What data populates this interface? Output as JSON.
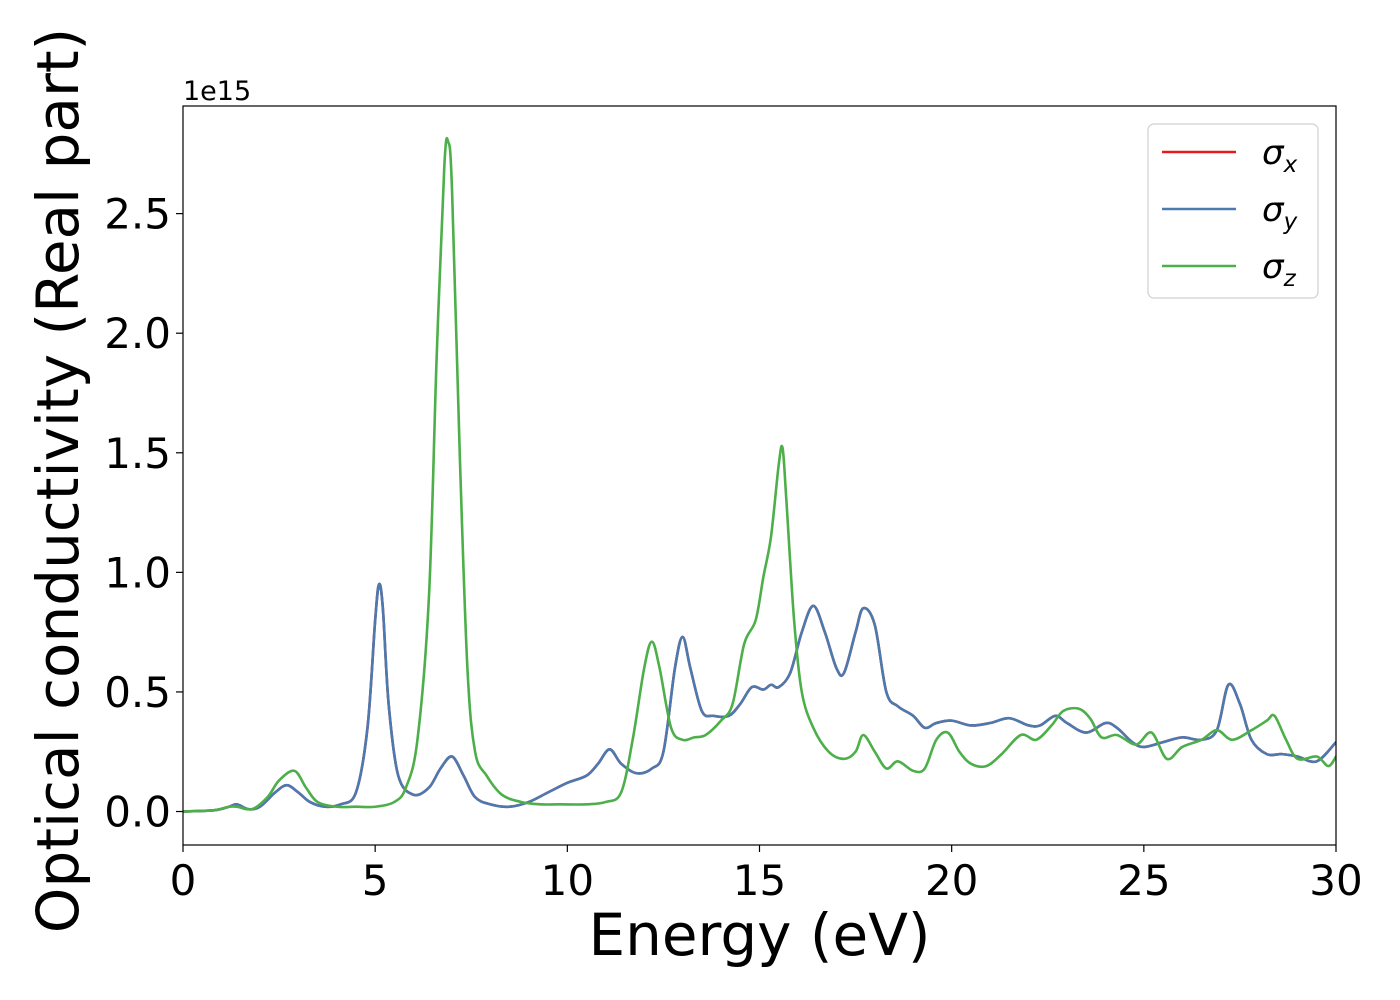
{
  "chart_data": {
    "type": "line",
    "xlabel": "Energy (eV)",
    "ylabel": "Optical conductivity (Real part)",
    "offset_text": "1e15",
    "xlim": [
      0,
      30
    ],
    "ylim": [
      -0.14,
      2.95
    ],
    "y_scale_multiplier": 1000000000000000.0,
    "x_ticks": [
      0,
      5,
      10,
      15,
      20,
      25,
      30
    ],
    "x_tick_labels": [
      "0",
      "5",
      "10",
      "15",
      "20",
      "25",
      "30"
    ],
    "y_ticks": [
      0.0,
      0.5,
      1.0,
      1.5,
      2.0,
      2.5
    ],
    "y_tick_labels": [
      "0.0",
      "0.5",
      "1.0",
      "1.5",
      "2.0",
      "2.5"
    ],
    "grid": false,
    "legend_position": "top-right",
    "series": [
      {
        "name": "σx",
        "symbol": "σ",
        "subscript": "x",
        "color": "#e41a1c",
        "x": [
          0,
          0.8,
          1.2,
          1.4,
          1.7,
          2.0,
          2.4,
          2.7,
          3.0,
          3.3,
          3.7,
          4.1,
          4.5,
          4.8,
          5.0,
          5.1,
          5.2,
          5.35,
          5.6,
          6.0,
          6.4,
          6.7,
          7.0,
          7.3,
          7.6,
          8.0,
          8.5,
          9.0,
          9.5,
          10.0,
          10.5,
          10.8,
          11.1,
          11.4,
          11.8,
          12.2,
          12.5,
          12.8,
          13.0,
          13.2,
          13.5,
          13.8,
          14.2,
          14.5,
          14.8,
          15.1,
          15.3,
          15.5,
          15.8,
          16.1,
          16.4,
          16.7,
          17.0,
          17.2,
          17.5,
          17.7,
          18.0,
          18.3,
          18.6,
          19.0,
          19.3,
          19.6,
          20.0,
          20.5,
          21.0,
          21.5,
          22.0,
          22.3,
          22.7,
          23.0,
          23.5,
          24.0,
          24.3,
          24.7,
          25.0,
          25.5,
          26.0,
          26.5,
          26.9,
          27.2,
          27.5,
          27.8,
          28.2,
          28.6,
          29.0,
          29.5,
          30.0
        ],
        "y": [
          0.0,
          0.005,
          0.02,
          0.03,
          0.01,
          0.02,
          0.08,
          0.11,
          0.08,
          0.04,
          0.02,
          0.03,
          0.08,
          0.35,
          0.8,
          0.95,
          0.85,
          0.45,
          0.15,
          0.07,
          0.1,
          0.18,
          0.23,
          0.15,
          0.06,
          0.03,
          0.02,
          0.04,
          0.08,
          0.12,
          0.15,
          0.2,
          0.26,
          0.2,
          0.16,
          0.18,
          0.25,
          0.6,
          0.73,
          0.6,
          0.42,
          0.4,
          0.4,
          0.45,
          0.52,
          0.51,
          0.53,
          0.52,
          0.58,
          0.75,
          0.86,
          0.75,
          0.6,
          0.58,
          0.75,
          0.85,
          0.78,
          0.5,
          0.44,
          0.4,
          0.35,
          0.37,
          0.38,
          0.36,
          0.37,
          0.39,
          0.36,
          0.36,
          0.4,
          0.37,
          0.33,
          0.37,
          0.35,
          0.29,
          0.27,
          0.29,
          0.31,
          0.3,
          0.34,
          0.53,
          0.45,
          0.3,
          0.24,
          0.24,
          0.23,
          0.21,
          0.29
        ]
      },
      {
        "name": "σy",
        "symbol": "σ",
        "subscript": "y",
        "color": "#4a7ab0",
        "x": [
          0,
          0.8,
          1.2,
          1.4,
          1.7,
          2.0,
          2.4,
          2.7,
          3.0,
          3.3,
          3.7,
          4.1,
          4.5,
          4.8,
          5.0,
          5.1,
          5.2,
          5.35,
          5.6,
          6.0,
          6.4,
          6.7,
          7.0,
          7.3,
          7.6,
          8.0,
          8.5,
          9.0,
          9.5,
          10.0,
          10.5,
          10.8,
          11.1,
          11.4,
          11.8,
          12.2,
          12.5,
          12.8,
          13.0,
          13.2,
          13.5,
          13.8,
          14.2,
          14.5,
          14.8,
          15.1,
          15.3,
          15.5,
          15.8,
          16.1,
          16.4,
          16.7,
          17.0,
          17.2,
          17.5,
          17.7,
          18.0,
          18.3,
          18.6,
          19.0,
          19.3,
          19.6,
          20.0,
          20.5,
          21.0,
          21.5,
          22.0,
          22.3,
          22.7,
          23.0,
          23.5,
          24.0,
          24.3,
          24.7,
          25.0,
          25.5,
          26.0,
          26.5,
          26.9,
          27.2,
          27.5,
          27.8,
          28.2,
          28.6,
          29.0,
          29.5,
          30.0
        ],
        "y": [
          0.0,
          0.005,
          0.02,
          0.03,
          0.01,
          0.02,
          0.08,
          0.11,
          0.08,
          0.04,
          0.02,
          0.03,
          0.08,
          0.35,
          0.8,
          0.95,
          0.85,
          0.45,
          0.15,
          0.07,
          0.1,
          0.18,
          0.23,
          0.15,
          0.06,
          0.03,
          0.02,
          0.04,
          0.08,
          0.12,
          0.15,
          0.2,
          0.26,
          0.2,
          0.16,
          0.18,
          0.25,
          0.6,
          0.73,
          0.6,
          0.42,
          0.4,
          0.4,
          0.45,
          0.52,
          0.51,
          0.53,
          0.52,
          0.58,
          0.75,
          0.86,
          0.75,
          0.6,
          0.58,
          0.75,
          0.85,
          0.78,
          0.5,
          0.44,
          0.4,
          0.35,
          0.37,
          0.38,
          0.36,
          0.37,
          0.39,
          0.36,
          0.36,
          0.4,
          0.37,
          0.33,
          0.37,
          0.35,
          0.29,
          0.27,
          0.29,
          0.31,
          0.3,
          0.34,
          0.53,
          0.45,
          0.3,
          0.24,
          0.24,
          0.23,
          0.21,
          0.29
        ]
      },
      {
        "name": "σz",
        "symbol": "σ",
        "subscript": "z",
        "color": "#4daf4a",
        "x": [
          0,
          0.8,
          1.2,
          1.4,
          1.8,
          2.2,
          2.5,
          2.9,
          3.2,
          3.5,
          4.0,
          4.5,
          5.0,
          5.5,
          5.8,
          6.1,
          6.4,
          6.6,
          6.8,
          6.9,
          7.0,
          7.2,
          7.4,
          7.6,
          7.9,
          8.3,
          8.8,
          9.3,
          9.8,
          10.5,
          11.0,
          11.4,
          11.7,
          12.0,
          12.2,
          12.4,
          12.7,
          13.0,
          13.3,
          13.6,
          14.0,
          14.3,
          14.6,
          14.9,
          15.1,
          15.3,
          15.5,
          15.6,
          15.7,
          15.9,
          16.1,
          16.4,
          16.8,
          17.2,
          17.5,
          17.7,
          18.0,
          18.3,
          18.6,
          19.0,
          19.3,
          19.6,
          19.9,
          20.2,
          20.5,
          20.9,
          21.3,
          21.8,
          22.2,
          22.6,
          22.9,
          23.3,
          23.6,
          23.9,
          24.3,
          24.8,
          25.2,
          25.6,
          26.0,
          26.5,
          26.9,
          27.3,
          27.8,
          28.2,
          28.4,
          28.7,
          29.0,
          29.5,
          29.8,
          30.0
        ],
        "y": [
          0.0,
          0.005,
          0.02,
          0.02,
          0.01,
          0.06,
          0.13,
          0.17,
          0.1,
          0.04,
          0.02,
          0.02,
          0.02,
          0.04,
          0.1,
          0.3,
          0.9,
          1.9,
          2.7,
          2.8,
          2.6,
          1.5,
          0.6,
          0.25,
          0.15,
          0.07,
          0.04,
          0.03,
          0.03,
          0.03,
          0.04,
          0.08,
          0.3,
          0.6,
          0.71,
          0.6,
          0.35,
          0.3,
          0.31,
          0.32,
          0.38,
          0.45,
          0.7,
          0.8,
          0.98,
          1.15,
          1.45,
          1.52,
          1.3,
          0.8,
          0.5,
          0.35,
          0.25,
          0.22,
          0.25,
          0.32,
          0.25,
          0.18,
          0.21,
          0.17,
          0.18,
          0.3,
          0.33,
          0.25,
          0.2,
          0.19,
          0.24,
          0.32,
          0.3,
          0.36,
          0.42,
          0.43,
          0.39,
          0.31,
          0.32,
          0.28,
          0.33,
          0.22,
          0.27,
          0.3,
          0.34,
          0.3,
          0.34,
          0.38,
          0.4,
          0.3,
          0.22,
          0.23,
          0.19,
          0.23
        ]
      }
    ]
  }
}
